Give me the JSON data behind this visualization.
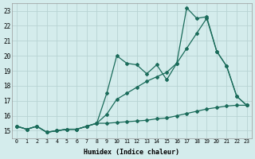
{
  "xlabel": "Humidex (Indice chaleur)",
  "bg_color": "#d4ecec",
  "grid_color": "#b8d4d4",
  "line_color": "#1a6b5a",
  "xlim": [
    -0.5,
    23.5
  ],
  "ylim": [
    14.5,
    23.5
  ],
  "xticks": [
    0,
    1,
    2,
    3,
    4,
    5,
    6,
    7,
    8,
    9,
    10,
    11,
    12,
    13,
    14,
    15,
    16,
    17,
    18,
    19,
    20,
    21,
    22,
    23
  ],
  "yticks": [
    15,
    16,
    17,
    18,
    19,
    20,
    21,
    22,
    23
  ],
  "line1_y": [
    15.3,
    15.1,
    15.3,
    14.9,
    15.0,
    15.1,
    15.1,
    15.3,
    15.5,
    17.5,
    20.0,
    19.5,
    19.4,
    18.8,
    19.4,
    18.4,
    19.5,
    23.2,
    22.5,
    22.6,
    20.3,
    19.3,
    17.3,
    16.7
  ],
  "line2_y": [
    15.3,
    15.1,
    15.3,
    14.9,
    15.0,
    15.1,
    15.1,
    15.3,
    15.5,
    16.1,
    17.1,
    17.5,
    17.9,
    18.3,
    18.6,
    18.9,
    19.5,
    20.5,
    21.5,
    22.5,
    20.3,
    19.3,
    17.3,
    16.7
  ],
  "line3_y": [
    15.3,
    15.1,
    15.3,
    14.9,
    15.0,
    15.1,
    15.1,
    15.3,
    15.5,
    15.5,
    15.55,
    15.6,
    15.65,
    15.7,
    15.8,
    15.85,
    16.0,
    16.15,
    16.3,
    16.45,
    16.55,
    16.65,
    16.7,
    16.7
  ]
}
